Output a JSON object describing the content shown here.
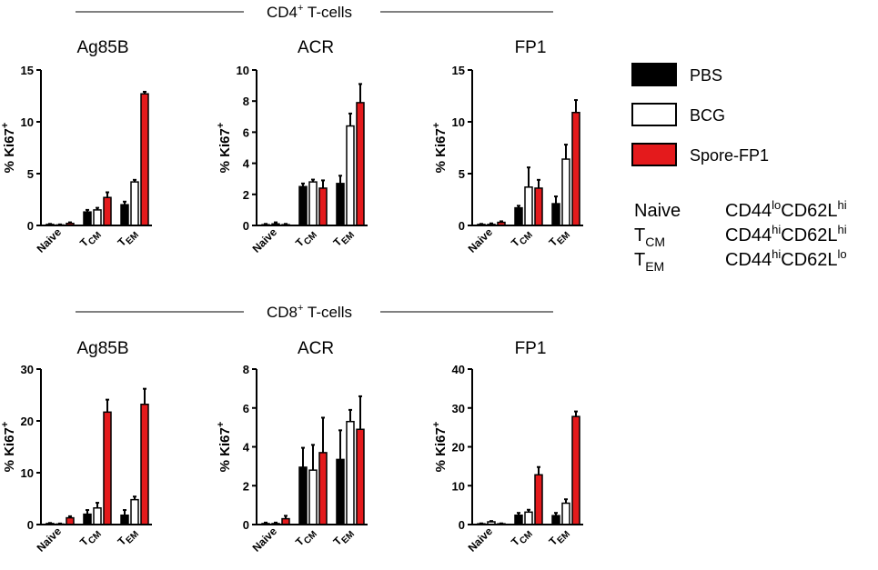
{
  "sections": [
    {
      "title": "CD4",
      "title_sup": "+",
      "title_rest": " T-cells"
    },
    {
      "title": "CD8",
      "title_sup": "+",
      "title_rest": " T-cells"
    }
  ],
  "colors": {
    "PBS": "#000000",
    "BCG": "#ffffff",
    "Spore-FP1": "#e41a1c",
    "axis": "#000000"
  },
  "legend": [
    {
      "label": "PBS",
      "color": "#000000"
    },
    {
      "label": "BCG",
      "color": "#ffffff"
    },
    {
      "label": "Spore-FP1",
      "color": "#e41a1c"
    }
  ],
  "definitions": [
    {
      "name": "Naive",
      "name_sub": "",
      "a": "CD44",
      "a_sup": "lo",
      "b": "CD62L",
      "b_sup": "hi"
    },
    {
      "name": "T",
      "name_sub": "CM",
      "a": "CD44",
      "a_sup": "hi",
      "b": "CD62L",
      "b_sup": "hi"
    },
    {
      "name": "T",
      "name_sub": "EM",
      "a": "CD44",
      "a_sup": "hi",
      "b": "CD62L",
      "b_sup": "lo"
    }
  ],
  "chart_data": [
    {
      "type": "bar",
      "section": "CD4",
      "title": "Ag85B",
      "ylabel": "% Ki67",
      "ylabel_sup": "+",
      "ylim": [
        0,
        15
      ],
      "yticks": [
        0,
        5,
        10,
        15
      ],
      "categories": [
        {
          "main": "Naive",
          "sub": ""
        },
        {
          "main": "T",
          "sub": "CM"
        },
        {
          "main": "T",
          "sub": "EM"
        }
      ],
      "series": [
        {
          "name": "PBS",
          "values": [
            0.1,
            1.3,
            2.0
          ],
          "errors": [
            0.05,
            0.2,
            0.3
          ]
        },
        {
          "name": "BCG",
          "values": [
            0.05,
            1.5,
            4.2
          ],
          "errors": [
            0.05,
            0.2,
            0.2
          ]
        },
        {
          "name": "Spore-FP1",
          "values": [
            0.2,
            2.7,
            12.7
          ],
          "errors": [
            0.1,
            0.5,
            0.2
          ]
        }
      ]
    },
    {
      "type": "bar",
      "section": "CD4",
      "title": "ACR",
      "ylabel": "% Ki67",
      "ylabel_sup": "+",
      "ylim": [
        0,
        10
      ],
      "yticks": [
        0,
        2,
        4,
        6,
        8,
        10
      ],
      "categories": [
        {
          "main": "Naive",
          "sub": ""
        },
        {
          "main": "T",
          "sub": "CM"
        },
        {
          "main": "T",
          "sub": "EM"
        }
      ],
      "series": [
        {
          "name": "PBS",
          "values": [
            0.05,
            2.5,
            2.7
          ],
          "errors": [
            0.05,
            0.2,
            0.5
          ]
        },
        {
          "name": "BCG",
          "values": [
            0.1,
            2.8,
            6.4
          ],
          "errors": [
            0.1,
            0.15,
            0.8
          ]
        },
        {
          "name": "Spore-FP1",
          "values": [
            0.05,
            2.4,
            7.9
          ],
          "errors": [
            0.05,
            0.5,
            1.2
          ]
        }
      ]
    },
    {
      "type": "bar",
      "section": "CD4",
      "title": "FP1",
      "ylabel": "% Ki67",
      "ylabel_sup": "+",
      "ylim": [
        0,
        15
      ],
      "yticks": [
        0,
        5,
        10,
        15
      ],
      "categories": [
        {
          "main": "Naive",
          "sub": ""
        },
        {
          "main": "T",
          "sub": "CM"
        },
        {
          "main": "T",
          "sub": "EM"
        }
      ],
      "series": [
        {
          "name": "PBS",
          "values": [
            0.1,
            1.7,
            2.1
          ],
          "errors": [
            0.05,
            0.2,
            0.7
          ]
        },
        {
          "name": "BCG",
          "values": [
            0.1,
            3.7,
            6.4
          ],
          "errors": [
            0.1,
            1.9,
            1.4
          ]
        },
        {
          "name": "Spore-FP1",
          "values": [
            0.3,
            3.6,
            10.9
          ],
          "errors": [
            0.1,
            0.8,
            1.2
          ]
        }
      ]
    },
    {
      "type": "bar",
      "section": "CD8",
      "title": "Ag85B",
      "ylabel": "% Ki67",
      "ylabel_sup": "+",
      "ylim": [
        0,
        30
      ],
      "yticks": [
        0,
        10,
        20,
        30
      ],
      "categories": [
        {
          "main": "Naive",
          "sub": ""
        },
        {
          "main": "T",
          "sub": "CM"
        },
        {
          "main": "T",
          "sub": "EM"
        }
      ],
      "series": [
        {
          "name": "PBS",
          "values": [
            0.2,
            2.0,
            1.8
          ],
          "errors": [
            0.1,
            0.8,
            1.0
          ]
        },
        {
          "name": "BCG",
          "values": [
            0.1,
            3.2,
            4.8
          ],
          "errors": [
            0.1,
            1.0,
            0.6
          ]
        },
        {
          "name": "Spore-FP1",
          "values": [
            1.3,
            21.7,
            23.2
          ],
          "errors": [
            0.3,
            2.4,
            3.0
          ]
        }
      ]
    },
    {
      "type": "bar",
      "section": "CD8",
      "title": "ACR",
      "ylabel": "% Ki67",
      "ylabel_sup": "+",
      "ylim": [
        0,
        8
      ],
      "yticks": [
        0,
        2,
        4,
        6,
        8
      ],
      "categories": [
        {
          "main": "Naive",
          "sub": ""
        },
        {
          "main": "T",
          "sub": "CM"
        },
        {
          "main": "T",
          "sub": "EM"
        }
      ],
      "series": [
        {
          "name": "PBS",
          "values": [
            0.05,
            2.95,
            3.35
          ],
          "errors": [
            0.05,
            1.0,
            1.5
          ]
        },
        {
          "name": "BCG",
          "values": [
            0.05,
            2.8,
            5.3
          ],
          "errors": [
            0.05,
            1.3,
            0.6
          ]
        },
        {
          "name": "Spore-FP1",
          "values": [
            0.3,
            3.7,
            4.9
          ],
          "errors": [
            0.15,
            1.8,
            1.7
          ]
        }
      ]
    },
    {
      "type": "bar",
      "section": "CD8",
      "title": "FP1",
      "ylabel": "% Ki67",
      "ylabel_sup": "+",
      "ylim": [
        0,
        40
      ],
      "yticks": [
        0,
        10,
        20,
        30,
        40
      ],
      "categories": [
        {
          "main": "Naive",
          "sub": ""
        },
        {
          "main": "T",
          "sub": "CM"
        },
        {
          "main": "T",
          "sub": "EM"
        }
      ],
      "series": [
        {
          "name": "PBS",
          "values": [
            0.2,
            2.4,
            2.3
          ],
          "errors": [
            0.1,
            0.6,
            0.7
          ]
        },
        {
          "name": "BCG",
          "values": [
            0.7,
            3.2,
            5.5
          ],
          "errors": [
            0.2,
            0.6,
            1.0
          ]
        },
        {
          "name": "Spore-FP1",
          "values": [
            0.2,
            12.8,
            27.8
          ],
          "errors": [
            0.1,
            2.0,
            1.3
          ]
        }
      ]
    }
  ]
}
